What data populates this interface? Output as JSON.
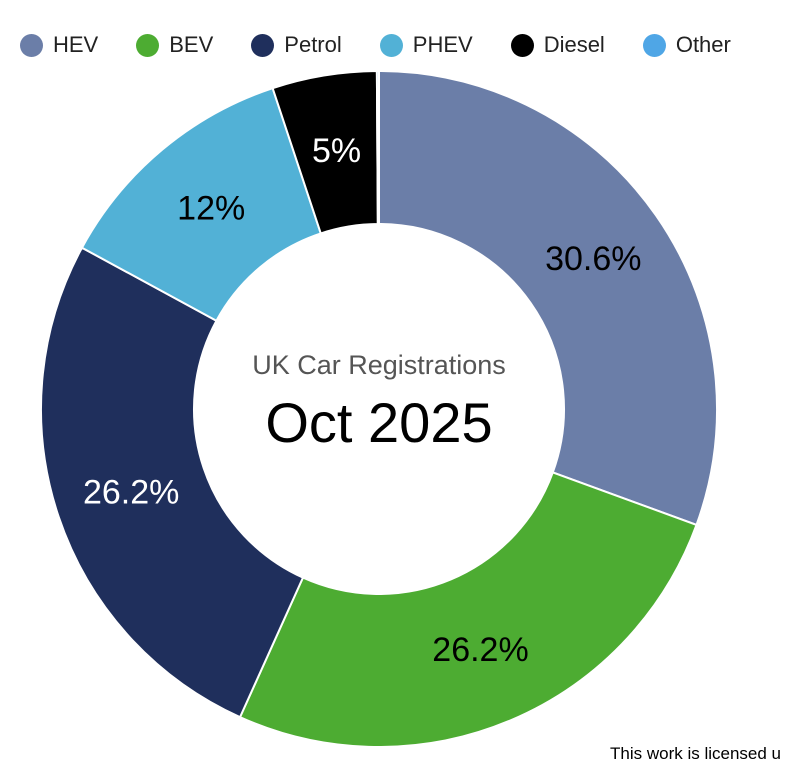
{
  "chart_data": {
    "type": "pie",
    "variant": "donut",
    "categories": [
      "HEV",
      "BEV",
      "Petrol",
      "PHEV",
      "Diesel",
      "Other"
    ],
    "values": [
      30.6,
      26.2,
      26.2,
      12,
      5,
      0.1
    ],
    "data_labels": [
      "30.6%",
      "26.2%",
      "26.2%",
      "12%",
      "5%",
      ""
    ],
    "colors": [
      "#6b7ea8",
      "#4dac32",
      "#1f2f5c",
      "#52b1d6",
      "#000000",
      "#4fa6e6"
    ],
    "label_colors": [
      "#000000",
      "#000000",
      "#ffffff",
      "#000000",
      "#ffffff",
      "#000000"
    ],
    "legend_position": "top-left",
    "center_subtitle": "UK Car Registrations",
    "center_title": "Oct 2025"
  },
  "footer": {
    "license_text": "This work is licensed u"
  }
}
